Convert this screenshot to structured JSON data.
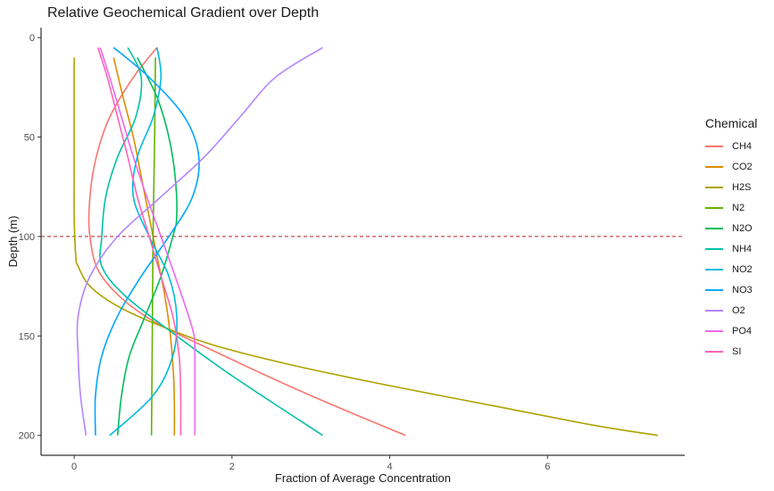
{
  "chart_data": {
    "type": "line",
    "orientation": "depth-profile",
    "title": "Relative Geochemical Gradient over Depth",
    "xlabel": "Fraction of Average Concentration",
    "ylabel": "Depth (m)",
    "xlim": [
      -0.42,
      7.74
    ],
    "ylim": [
      -5,
      210
    ],
    "y_reversed": true,
    "x_ticks": [
      0,
      2,
      4,
      6
    ],
    "y_ticks": [
      0,
      50,
      100,
      150,
      200
    ],
    "grid": false,
    "legend_title": "Chemical",
    "legend_position": "right",
    "reference_line": {
      "y": 100,
      "color": "#b22222",
      "style": "dashed"
    },
    "series": [
      {
        "name": "CH4",
        "color": "#F8766D",
        "depth": [
          5,
          20,
          40,
          60,
          80,
          100,
          120,
          140,
          160,
          180,
          200
        ],
        "x": [
          1.05,
          0.75,
          0.45,
          0.28,
          0.2,
          0.2,
          0.35,
          0.9,
          1.9,
          3.0,
          4.2
        ]
      },
      {
        "name": "CO2",
        "color": "#DB8E00",
        "depth": [
          10,
          30,
          50,
          70,
          90,
          110,
          130,
          150,
          170,
          185,
          200
        ],
        "x": [
          0.5,
          0.62,
          0.75,
          0.85,
          0.95,
          1.05,
          1.15,
          1.22,
          1.26,
          1.27,
          1.27
        ]
      },
      {
        "name": "H2S",
        "color": "#AEA200",
        "depth": [
          10,
          30,
          50,
          70,
          90,
          110,
          115,
          125,
          135,
          145,
          155,
          165,
          175,
          185,
          195,
          200
        ],
        "x": [
          0.0,
          0.0,
          0.0,
          0.0,
          0.0,
          0.02,
          0.05,
          0.2,
          0.55,
          1.1,
          1.8,
          2.8,
          4.0,
          5.3,
          6.6,
          7.4
        ]
      },
      {
        "name": "N2",
        "color": "#64B200",
        "depth": [
          10,
          50,
          100,
          150,
          200
        ],
        "x": [
          1.03,
          1.02,
          1.0,
          0.99,
          0.98
        ]
      },
      {
        "name": "N2O",
        "color": "#00BD5C",
        "depth": [
          10,
          30,
          50,
          70,
          90,
          100,
          120,
          140,
          160,
          180,
          200
        ],
        "x": [
          0.8,
          1.05,
          1.2,
          1.28,
          1.3,
          1.25,
          1.1,
          0.9,
          0.7,
          0.6,
          0.55
        ]
      },
      {
        "name": "NH4",
        "color": "#00C1A7",
        "depth": [
          5,
          20,
          40,
          60,
          80,
          100,
          115,
          130,
          150,
          170,
          200
        ],
        "x": [
          0.68,
          0.85,
          0.78,
          0.55,
          0.4,
          0.35,
          0.35,
          0.65,
          1.3,
          2.0,
          3.15
        ]
      },
      {
        "name": "NO2",
        "color": "#00BADE",
        "depth": [
          5,
          20,
          40,
          60,
          80,
          100,
          120,
          140,
          160,
          180,
          200
        ],
        "x": [
          1.05,
          1.1,
          1.0,
          0.8,
          0.75,
          0.95,
          1.2,
          1.3,
          1.25,
          1.0,
          0.45
        ]
      },
      {
        "name": "NO3",
        "color": "#00A6FF",
        "depth": [
          5,
          20,
          40,
          60,
          80,
          100,
          120,
          140,
          160,
          180,
          200
        ],
        "x": [
          0.5,
          0.95,
          1.4,
          1.58,
          1.5,
          1.2,
          0.85,
          0.55,
          0.35,
          0.27,
          0.27
        ]
      },
      {
        "name": "O2",
        "color": "#B385FF",
        "depth": [
          5,
          20,
          40,
          60,
          80,
          100,
          120,
          140,
          160,
          180,
          200
        ],
        "x": [
          3.15,
          2.55,
          2.1,
          1.65,
          1.1,
          0.55,
          0.2,
          0.05,
          0.05,
          0.08,
          0.15
        ]
      },
      {
        "name": "PO4",
        "color": "#EF67EB",
        "depth": [
          5,
          20,
          40,
          60,
          80,
          100,
          120,
          140,
          150,
          160,
          180,
          200
        ],
        "x": [
          0.33,
          0.45,
          0.6,
          0.75,
          0.92,
          1.1,
          1.28,
          1.45,
          1.52,
          1.53,
          1.53,
          1.53
        ]
      },
      {
        "name": "SI",
        "color": "#FF63B6",
        "depth": [
          5,
          20,
          40,
          60,
          80,
          100,
          120,
          140,
          160,
          180,
          200
        ],
        "x": [
          0.3,
          0.42,
          0.55,
          0.68,
          0.8,
          0.95,
          1.1,
          1.25,
          1.33,
          1.35,
          1.35
        ]
      }
    ]
  }
}
